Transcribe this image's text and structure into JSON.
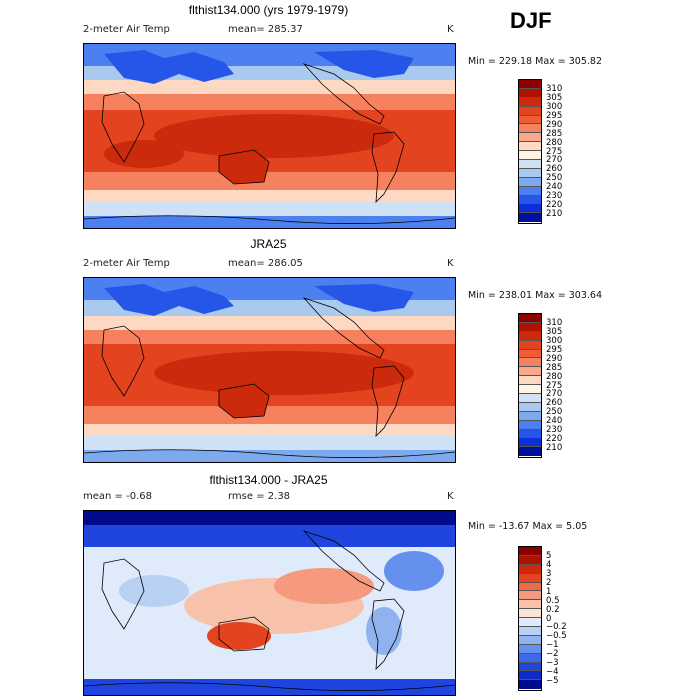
{
  "season": "DJF",
  "colorbars": {
    "absolute": {
      "labels": [
        "310",
        "305",
        "300",
        "295",
        "290",
        "285",
        "280",
        "275",
        "270",
        "260",
        "250",
        "240",
        "230",
        "220",
        "210"
      ],
      "colors": [
        "#8b0000",
        "#b01200",
        "#cc2a0c",
        "#e3431f",
        "#ef5d36",
        "#f5815e",
        "#f8a98c",
        "#fdd9c4",
        "#fff3e3",
        "#cfe2f5",
        "#a9c9ef",
        "#7daaee",
        "#4c7ff0",
        "#2656e8",
        "#0c2fd8",
        "#00109e"
      ]
    },
    "difference": {
      "labels": [
        "5",
        "4",
        "3",
        "2",
        "1",
        "0.5",
        "0.2",
        "0",
        "−0.2",
        "−0.5",
        "−1",
        "−2",
        "−3",
        "−4",
        "−5"
      ],
      "colors": [
        "#8b0000",
        "#b01200",
        "#cc2a0c",
        "#e3431f",
        "#ef6a45",
        "#f59a7e",
        "#f8c2aa",
        "#fbe4d6",
        "#dfeafa",
        "#b8d0f2",
        "#8fb3ef",
        "#6590ee",
        "#3d6aea",
        "#1f45de",
        "#0c2cc8",
        "#000c8c"
      ]
    }
  },
  "panels": [
    {
      "title": "flthist134.000 (yrs 1979-1979)",
      "left_text": "2-meter Air Temp",
      "mid_text": "mean= 285.37",
      "right_text": "K",
      "minmax": "Min = 229.18 Max = 305.82",
      "colorbar": "absolute"
    },
    {
      "title": "JRA25",
      "left_text": "2-meter Air Temp",
      "mid_text": "mean= 286.05",
      "right_text": "K",
      "minmax": "Min = 238.01 Max = 303.64",
      "colorbar": "absolute"
    },
    {
      "title": "flthist134.000 - JRA25",
      "left_text": "mean =  -0.68",
      "mid_text": "rmse =   2.38",
      "right_text": "K",
      "minmax": "Min = -13.67 Max =   5.05",
      "colorbar": "difference"
    }
  ],
  "chart_data": [
    {
      "type": "heatmap",
      "title": "flthist134.000 (yrs 1979-1979)",
      "variable": "2-meter Air Temp",
      "units": "K",
      "mean": 285.37,
      "min": 229.18,
      "max": 305.82,
      "levels": [
        210,
        220,
        230,
        240,
        250,
        260,
        270,
        275,
        280,
        285,
        290,
        295,
        300,
        305,
        310
      ]
    },
    {
      "type": "heatmap",
      "title": "JRA25",
      "variable": "2-meter Air Temp",
      "units": "K",
      "mean": 286.05,
      "min": 238.01,
      "max": 303.64,
      "levels": [
        210,
        220,
        230,
        240,
        250,
        260,
        270,
        275,
        280,
        285,
        290,
        295,
        300,
        305,
        310
      ]
    },
    {
      "type": "heatmap",
      "title": "flthist134.000 - JRA25",
      "units": "K",
      "mean": -0.68,
      "rmse": 2.38,
      "min": -13.67,
      "max": 5.05,
      "levels": [
        -5,
        -4,
        -3,
        -2,
        -1,
        -0.5,
        -0.2,
        0,
        0.2,
        0.5,
        1,
        2,
        3,
        4,
        5
      ]
    }
  ]
}
